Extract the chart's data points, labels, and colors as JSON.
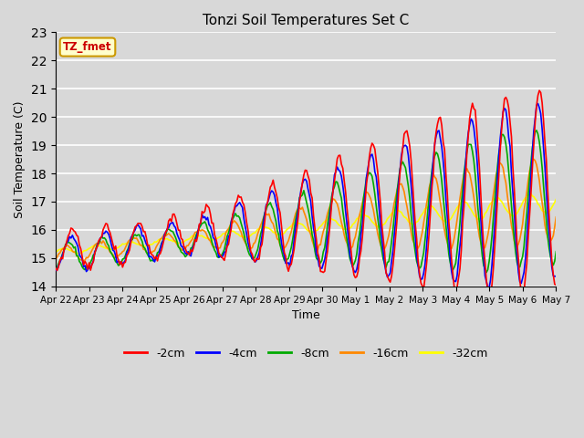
{
  "title": "Tonzi Soil Temperatures Set C",
  "xlabel": "Time",
  "ylabel": "Soil Temperature (C)",
  "ylim": [
    14.0,
    23.0
  ],
  "yticks": [
    14.0,
    15.0,
    16.0,
    17.0,
    18.0,
    19.0,
    20.0,
    21.0,
    22.0,
    23.0
  ],
  "annotation_text": "TZ_fmet",
  "annotation_color": "#cc0000",
  "annotation_bg": "#ffffcc",
  "annotation_border": "#cc9900",
  "series_colors": [
    "#ff0000",
    "#0000ff",
    "#00aa00",
    "#ff8800",
    "#ffff00"
  ],
  "series_labels": [
    "-2cm",
    "-4cm",
    "-8cm",
    "-16cm",
    "-32cm"
  ],
  "bg_color": "#d8d8d8",
  "grid_color": "#ffffff",
  "line_width": 1.2,
  "figsize": [
    6.4,
    4.8
  ],
  "dpi": 100
}
